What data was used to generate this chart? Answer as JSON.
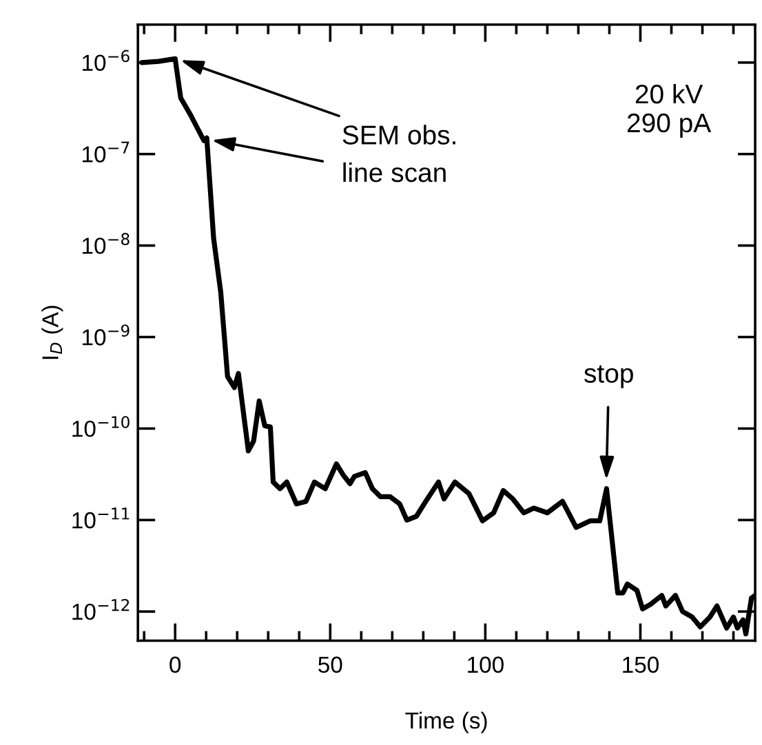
{
  "chart_data": {
    "type": "line",
    "xlabel": "Time (s)",
    "ylabel": "I$_{D}$ (A)",
    "log": "y",
    "grid": false,
    "marker": "none",
    "line_style": "solid",
    "xlim": [
      -12,
      187
    ],
    "ylim": [
      4.8e-13,
      2.6e-06
    ],
    "xticks": [
      {
        "value": -10,
        "label": null
      },
      0,
      {
        "value": 10,
        "label": null
      },
      {
        "value": 20,
        "label": null
      },
      {
        "value": 30,
        "label": null
      },
      {
        "value": 40,
        "label": null
      },
      50,
      {
        "value": 60,
        "label": null
      },
      {
        "value": 70,
        "label": null
      },
      {
        "value": 80,
        "label": null
      },
      {
        "value": 90,
        "label": null
      },
      100,
      {
        "value": 110,
        "label": null
      },
      {
        "value": 120,
        "label": null
      },
      {
        "value": 130,
        "label": null
      },
      {
        "value": 140,
        "label": null
      },
      150,
      {
        "value": 160,
        "label": null
      },
      {
        "value": 170,
        "label": null
      },
      {
        "value": 180,
        "label": null
      }
    ],
    "yticks": [
      {
        "value": 1e-12,
        "label": "10$^{−12}$"
      },
      {
        "value": 1e-11,
        "label": "10$^{−11}$"
      },
      {
        "value": 1e-10,
        "label": "10$^{−10}$"
      },
      {
        "value": 1e-09,
        "label": "10$^{−9}$"
      },
      {
        "value": 1e-08,
        "label": "10$^{−8}$"
      },
      {
        "value": 1e-07,
        "label": "10$^{−7}$"
      },
      {
        "value": 1e-06,
        "label": "10$^{−6}$"
      }
    ],
    "annotations": [
      {
        "text": "SEM obs.",
        "x": 0.5,
        "y": 1.1e-06
      },
      {
        "text": "line scan",
        "x": 10.5,
        "y": 1.45e-07
      },
      {
        "text": "stop",
        "x": 139,
        "y": 2.5e-11
      },
      "20 kV\n290 pA"
    ],
    "x": [
      -10.7,
      -5.3,
      0,
      1.8,
      4.9,
      9.3,
      10.2,
      12.4,
      14.7,
      16.0,
      16.9,
      19.1,
      20.4,
      23.6,
      25.3,
      27.1,
      28.9,
      30.7,
      31.6,
      33.8,
      36.0,
      39.1,
      42.2,
      44.9,
      48.4,
      52.0,
      54.2,
      56.4,
      57.8,
      61.3,
      63.6,
      66.2,
      69.3,
      72.4,
      74.7,
      77.8,
      81.3,
      84.9,
      86.7,
      90.2,
      94.7,
      99.1,
      102.7,
      105.8,
      108.9,
      112.4,
      115.6,
      120.0,
      124.9,
      129.3,
      133.8,
      136.9,
      139.1,
      142.7,
      144.4,
      145.8,
      148.9,
      150.7,
      153.3,
      156.9,
      158.2,
      161.3,
      163.6,
      166.7,
      169.3,
      172.4,
      174.7,
      177.8,
      180.0,
      181.3,
      183.1,
      184.0,
      185.8,
      187.0
    ],
    "series": [
      {
        "color": "#000000",
        "values": [
          1e-06,
          1.03e-06,
          1.1e-06,
          4.1e-07,
          2.7e-07,
          1.4e-07,
          1.5e-07,
          1.2e-08,
          3.1e-09,
          8.9e-10,
          3.7e-10,
          2.8e-10,
          4e-10,
          5.7e-11,
          7.3e-11,
          2e-10,
          1.07e-10,
          1.04e-10,
          2.6e-11,
          2.2e-11,
          2.6e-11,
          1.5e-11,
          1.6e-11,
          2.6e-11,
          2.2e-11,
          4.1e-11,
          3.1e-11,
          2.5e-11,
          3e-11,
          3.3e-11,
          2.2e-11,
          1.8e-11,
          1.8e-11,
          1.5e-11,
          1e-11,
          1.1e-11,
          1.7e-11,
          2.6e-11,
          1.7e-11,
          2.6e-11,
          1.95e-11,
          9.8e-12,
          1.2e-11,
          2.1e-11,
          1.7e-11,
          1.2e-11,
          1.35e-11,
          1.2e-11,
          1.6e-11,
          8.3e-12,
          9.8e-12,
          9.8e-12,
          2.2e-11,
          1.6e-12,
          1.6e-12,
          2e-12,
          1.7e-12,
          1.07e-12,
          1.2e-12,
          1.5e-12,
          1.15e-12,
          1.5e-12,
          1e-12,
          8.7e-13,
          6.8e-13,
          8.7e-13,
          1.15e-12,
          6.6e-13,
          8.7e-13,
          6.6e-13,
          8.1e-13,
          5.7e-13,
          1.4e-12,
          1.5e-12
        ]
      }
    ]
  }
}
